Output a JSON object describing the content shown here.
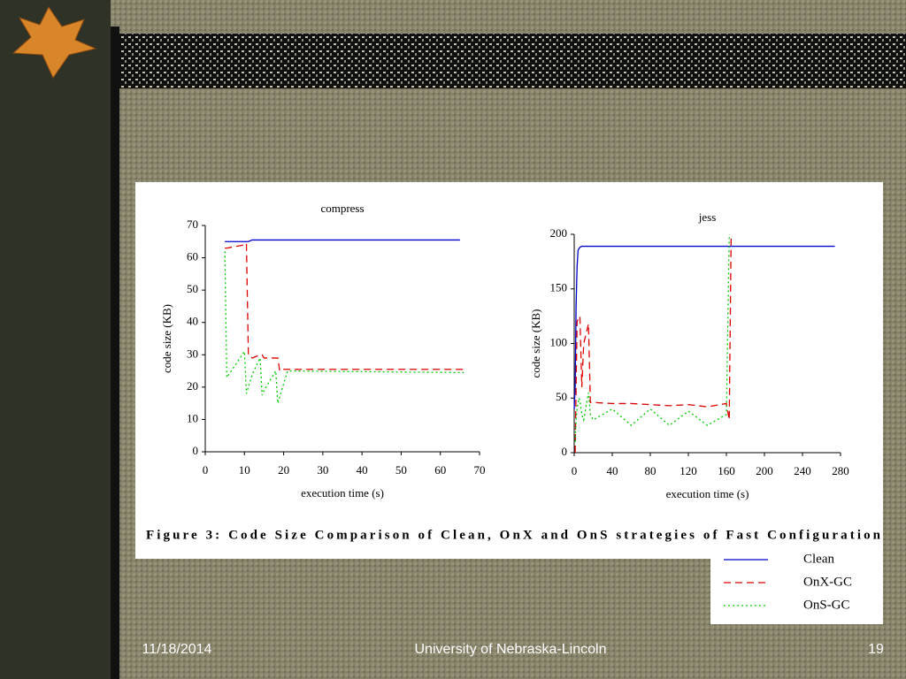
{
  "footer": {
    "date": "11/18/2014",
    "organization": "University of Nebraska-Lincoln",
    "page": "19"
  },
  "caption": "Figure 3: Code Size Comparison of Clean, OnX and OnS strategies of Fast Configuration",
  "chart_data": [
    {
      "type": "line",
      "title": "compress",
      "x_label": "execution time (s)",
      "y_label": "code size (KB)",
      "x": [
        5,
        5.5,
        10,
        10.5,
        11,
        12,
        14,
        14.5,
        15,
        18,
        18.5,
        19,
        20,
        21,
        65,
        66
      ],
      "series": [
        {
          "name": "Clean",
          "color": "#0000cc",
          "values": [
            65,
            65,
            65,
            65,
            65,
            65.5,
            65.5,
            65.5,
            65.5,
            65.5,
            65.5,
            65.5,
            65.5,
            65.5,
            65.5,
            null
          ]
        },
        {
          "name": "OnX-GC",
          "color": "#dd0000",
          "values": [
            63,
            63,
            64,
            64.5,
            30,
            29,
            30,
            30,
            29,
            29,
            29,
            25,
            25.5,
            25.5,
            25.5,
            25.5
          ]
        },
        {
          "name": "OnS-GC",
          "color": "#00cc00",
          "values": [
            62,
            23,
            31,
            18,
            20,
            24,
            29,
            17.5,
            19,
            25,
            15,
            17,
            21,
            25,
            24.5,
            24.5
          ]
        }
      ],
      "xlim": [
        0,
        70
      ],
      "xticks": [
        0,
        10,
        20,
        30,
        40,
        50,
        60,
        70
      ],
      "ylim": [
        0,
        70
      ],
      "yticks": [
        0,
        10,
        20,
        30,
        40,
        50,
        60,
        70
      ]
    },
    {
      "type": "line",
      "title": "jess",
      "x_label": "execution time (s)",
      "y_label": "code size (KB)",
      "x": [
        0,
        1,
        2,
        3,
        4,
        5,
        6,
        8,
        10,
        15,
        17,
        20,
        40,
        60,
        80,
        100,
        120,
        140,
        160,
        163,
        165,
        274
      ],
      "series": [
        {
          "name": "Clean",
          "color": "#0000cc",
          "values": [
            40,
            60,
            135,
            170,
            185,
            187,
            188,
            189,
            189,
            189,
            189,
            189,
            189,
            189,
            189,
            189,
            189,
            189,
            189,
            189,
            189,
            189
          ]
        },
        {
          "name": "OnX-GC",
          "color": "#dd0000",
          "values": [
            null,
            0,
            60,
            120,
            122,
            124,
            125,
            60,
            100,
            118,
            46,
            46,
            45,
            45,
            44,
            43,
            44,
            42,
            45,
            30,
            200,
            null
          ]
        },
        {
          "name": "OnS-GC",
          "color": "#00cc00",
          "values": [
            null,
            10,
            30,
            40,
            45,
            50,
            48,
            35,
            30,
            55,
            35,
            30,
            40,
            25,
            40,
            25,
            38,
            25,
            35,
            200,
            null,
            null
          ]
        }
      ],
      "xlim": [
        0,
        280
      ],
      "xticks": [
        0,
        40,
        80,
        120,
        160,
        200,
        240,
        280
      ],
      "ylim": [
        0,
        200
      ],
      "yticks": [
        0,
        50,
        100,
        150,
        200
      ]
    }
  ]
}
